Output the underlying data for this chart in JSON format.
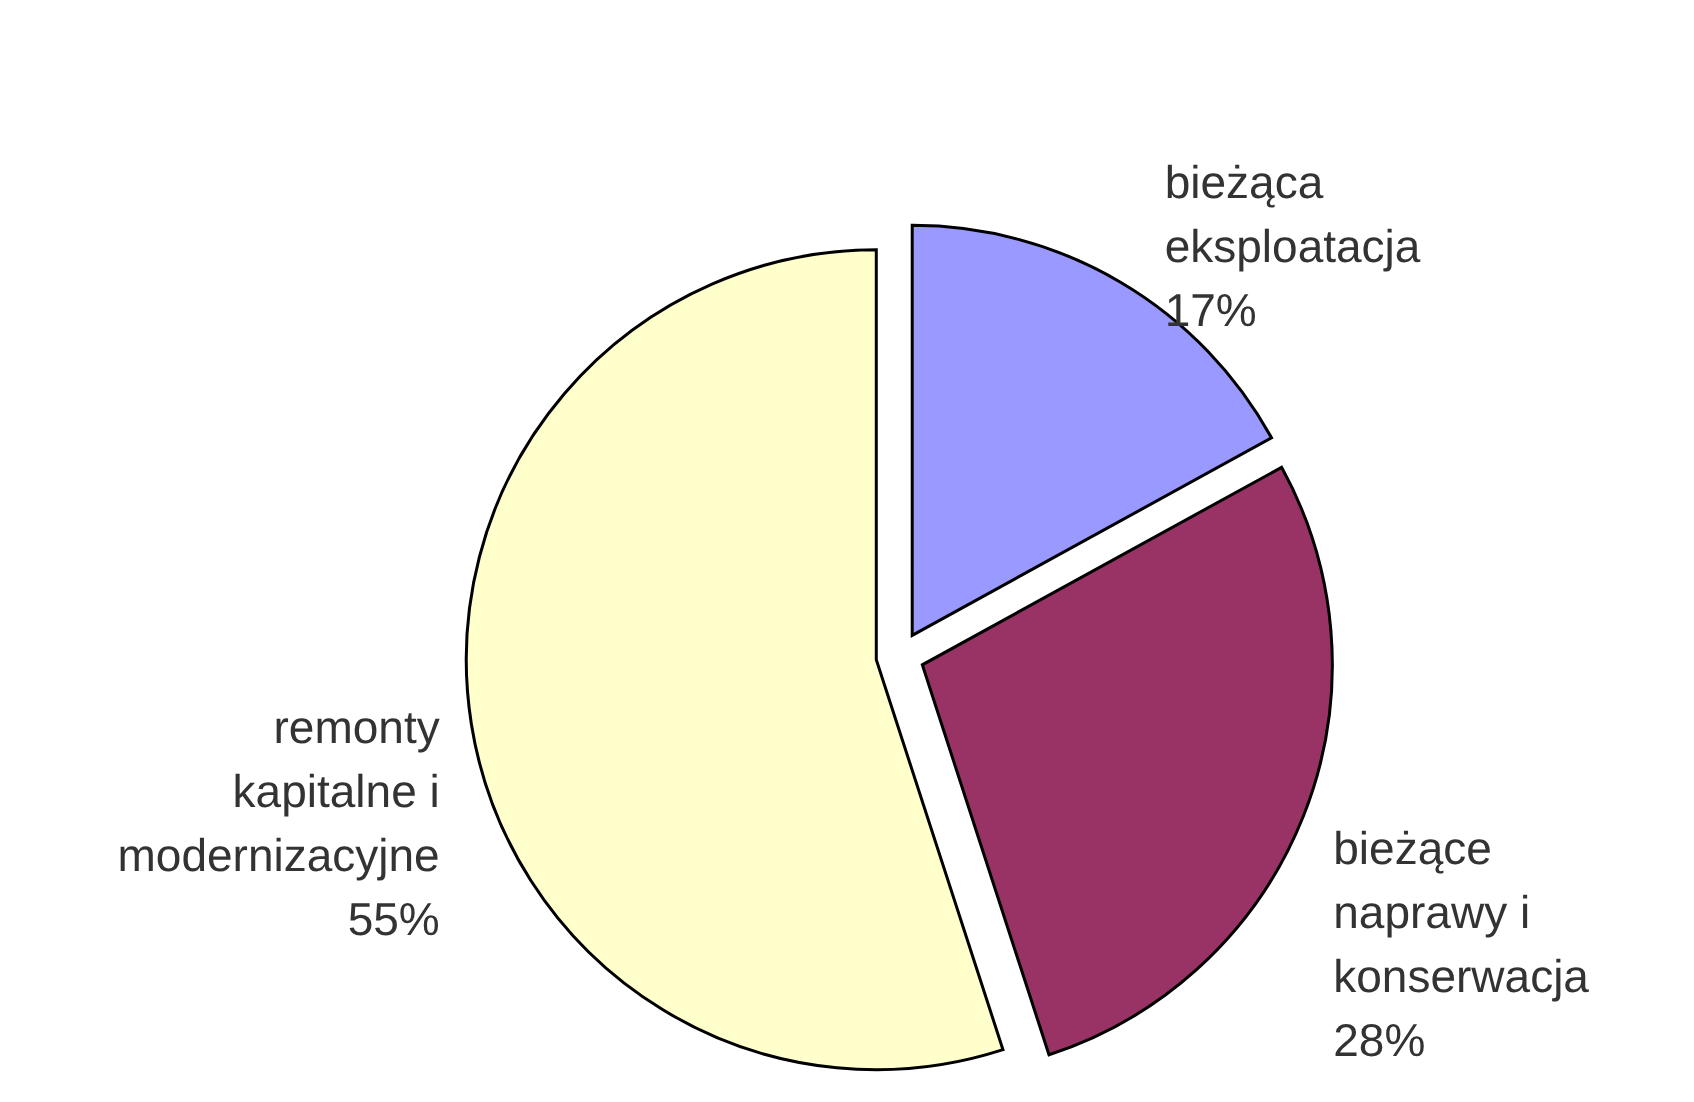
{
  "chart_data": {
    "type": "pie",
    "categories": [
      "bieżąca eksploatacja",
      "bieżące naprawy i konserwacja",
      "remonty kapitalne i modernizacyjne"
    ],
    "values": [
      17,
      28,
      55
    ],
    "value_labels": [
      "17%",
      "28%",
      "55%"
    ],
    "colors": [
      "#9999ff",
      "#993366",
      "#ffffcc"
    ]
  }
}
